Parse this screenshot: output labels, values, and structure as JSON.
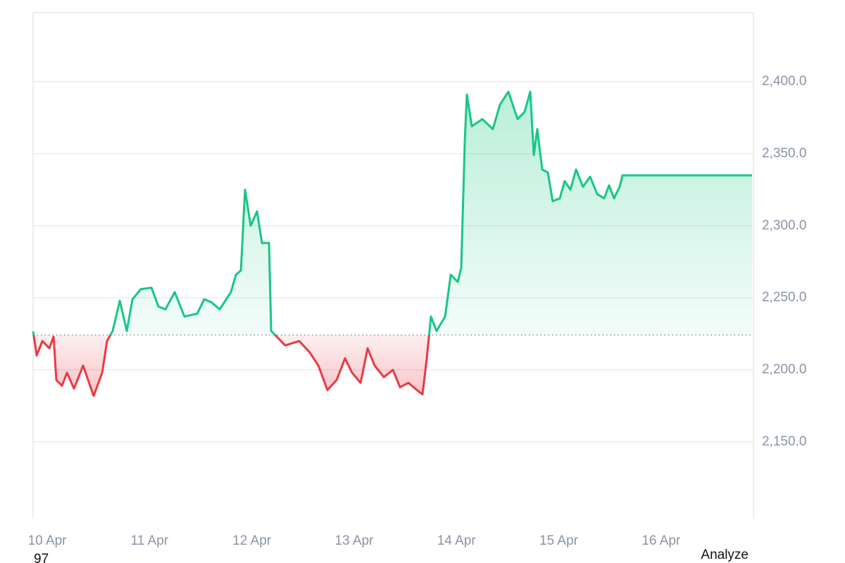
{
  "chart_data": {
    "type": "baseline-line",
    "x": [
      9.862,
      9.897,
      9.952,
      10.021,
      10.062,
      10.089,
      10.145,
      10.193,
      10.262,
      10.351,
      10.454,
      10.537,
      10.585,
      10.64,
      10.709,
      10.778,
      10.833,
      10.915,
      11.019,
      11.087,
      11.156,
      11.246,
      11.342,
      11.466,
      11.535,
      11.603,
      11.686,
      11.796,
      11.844,
      11.893,
      11.934,
      11.989,
      12.051,
      12.099,
      12.168,
      12.189,
      12.257,
      12.326,
      12.464,
      12.567,
      12.65,
      12.739,
      12.829,
      12.911,
      12.98,
      13.063,
      13.131,
      13.2,
      13.29,
      13.379,
      13.448,
      13.531,
      13.613,
      13.668,
      13.71,
      13.751,
      13.806,
      13.889,
      13.944,
      14.013,
      14.047,
      14.082,
      14.102,
      14.15,
      14.253,
      14.356,
      14.425,
      14.508,
      14.597,
      14.666,
      14.721,
      14.756,
      14.79,
      14.838,
      14.893,
      14.941,
      15.01,
      15.058,
      15.114,
      15.169,
      15.237,
      15.306,
      15.375,
      15.444,
      15.492,
      15.54,
      15.595,
      15.623,
      16.889
    ],
    "values": [
      2226.7,
      2210,
      2220,
      2215,
      2223,
      2193,
      2189,
      2198,
      2187,
      2203,
      2182,
      2198,
      2220,
      2227,
      2248,
      2227,
      2249,
      2256,
      2257,
      2244,
      2242,
      2254,
      2237,
      2239,
      2249,
      2247,
      2242,
      2254,
      2266,
      2269,
      2325,
      2300,
      2310,
      2288,
      2288,
      2227,
      2222,
      2217,
      2220,
      2212,
      2203,
      2186,
      2193,
      2208,
      2198,
      2191,
      2215,
      2203,
      2195,
      2200,
      2188,
      2191,
      2186,
      2183,
      2208,
      2237,
      2227,
      2237,
      2266,
      2261,
      2271,
      2359,
      2391,
      2369,
      2374,
      2367,
      2384,
      2393,
      2374,
      2379,
      2393,
      2349,
      2367,
      2339,
      2337,
      2317,
      2319,
      2331,
      2325,
      2339,
      2327,
      2334,
      2322,
      2319,
      2328,
      2319,
      2327,
      2335,
      2335
    ],
    "baseline": 2224.2,
    "up_color": "#16c784",
    "down_color": "#ea3943",
    "xlim": [
      9.862,
      16.903
    ],
    "xticks": [
      {
        "value": 10,
        "label": "10 Apr"
      },
      {
        "value": 11,
        "label": "11 Apr"
      },
      {
        "value": 12,
        "label": "12 Apr"
      },
      {
        "value": 13,
        "label": "13 Apr"
      },
      {
        "value": 14,
        "label": "14 Apr"
      },
      {
        "value": 15,
        "label": "15 Apr"
      },
      {
        "value": 16,
        "label": "16 Apr"
      }
    ],
    "ylim": [
      2096.8,
      2447.8
    ],
    "yticks": [
      {
        "value": 2150,
        "label": "2,150.0"
      },
      {
        "value": 2200,
        "label": "2,200.0"
      },
      {
        "value": 2250,
        "label": "2,250.0"
      },
      {
        "value": 2300,
        "label": "2,300.0"
      },
      {
        "value": 2350,
        "label": "2,350.0"
      },
      {
        "value": 2400,
        "label": "2,400.0"
      }
    ],
    "grid": true,
    "footer_left": "97",
    "footer_right": "Analyze"
  }
}
